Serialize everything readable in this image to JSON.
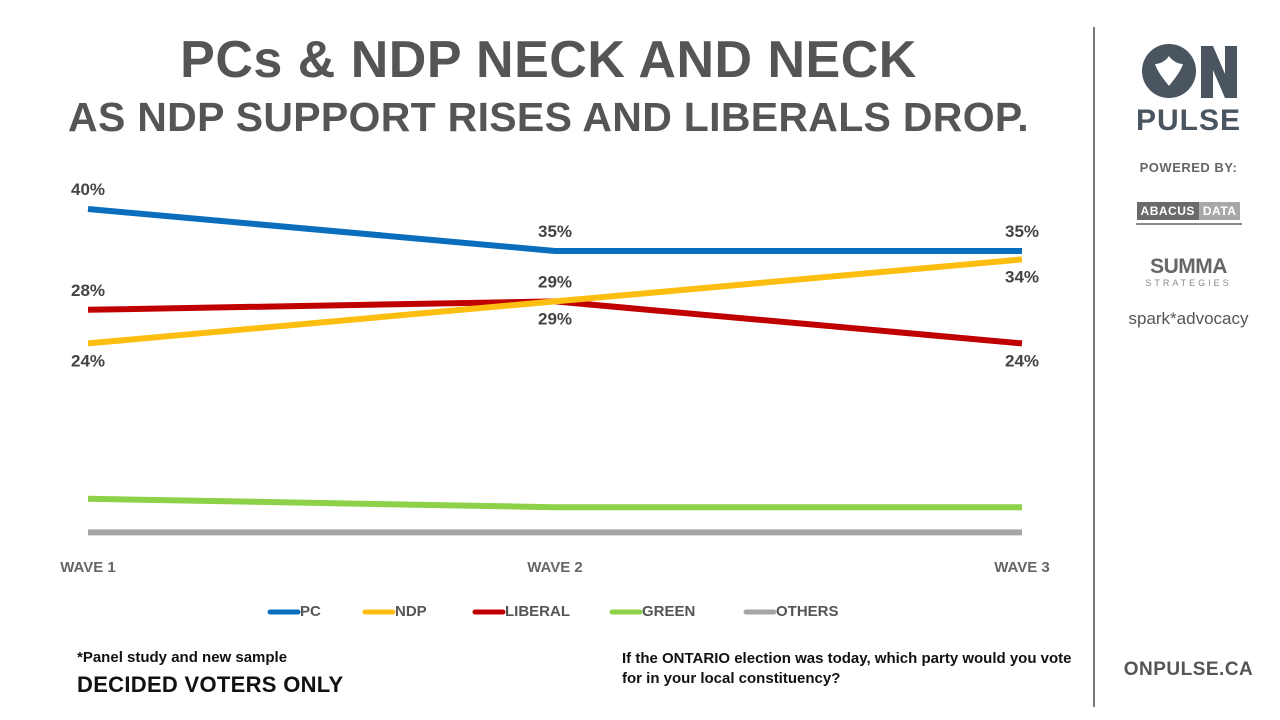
{
  "title": "PCs & NDP NECK AND NECK",
  "subtitle": "AS NDP SUPPORT RISES AND LIBERALS DROP.",
  "chart_data": {
    "type": "line",
    "title": "PCs & NDP NECK AND NECK AS NDP SUPPORT RISES AND LIBERALS DROP.",
    "categories": [
      "WAVE 1",
      "WAVE 2",
      "WAVE 3"
    ],
    "ylim": [
      0,
      45
    ],
    "grid": false,
    "legend": "bottom",
    "series": [
      {
        "name": "PC",
        "color": "#0A6EBD",
        "values": [
          40,
          35,
          35
        ],
        "labels": [
          "40%",
          "35%",
          "35%"
        ],
        "label_pos": [
          "above",
          "above",
          "above"
        ]
      },
      {
        "name": "NDP",
        "color": "#FDBE10",
        "values": [
          24,
          29,
          34
        ],
        "labels": [
          "24%",
          "29%",
          "34%"
        ],
        "label_pos": [
          "below",
          "below",
          "below"
        ]
      },
      {
        "name": "LIBERAL",
        "color": "#C00000",
        "values": [
          28,
          29,
          24
        ],
        "labels": [
          "28%",
          "29%",
          "24%"
        ],
        "label_pos": [
          "above",
          "above",
          "below"
        ]
      },
      {
        "name": "GREEN",
        "color": "#8CD148",
        "values": [
          5.5,
          4.5,
          4.5
        ],
        "labels": []
      },
      {
        "name": "OTHERS",
        "color": "#A6A6A6",
        "values": [
          1.5,
          1.5,
          1.5
        ],
        "labels": []
      }
    ]
  },
  "notes": {
    "panel": "*Panel study and new sample",
    "decided": "DECIDED VOTERS ONLY",
    "question": "If the ONTARIO election was today, which party would you vote for in your local constituency?"
  },
  "sidebar": {
    "logo_on": "ON",
    "logo_pulse": "PULSE",
    "powered_by": "POWERED BY:",
    "abacus_1": "ABACUS",
    "abacus_2": "DATA",
    "summa": "SUMMA",
    "strategies": "STRATEGIES",
    "spark": "spark*advocacy",
    "website": "ONPULSE.CA"
  },
  "colors": {
    "logo": "#4A5560",
    "text": "#555555"
  }
}
